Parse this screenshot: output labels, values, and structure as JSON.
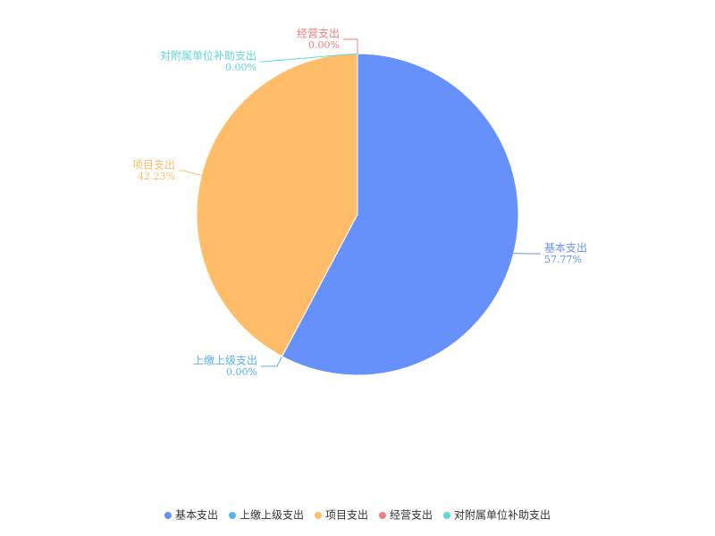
{
  "chart_data": {
    "type": "pie",
    "categories": [
      "基本支出",
      "上缴上级支出",
      "项目支出",
      "经营支出",
      "对附属单位补助支出"
    ],
    "values": [
      57.77,
      0,
      42.23,
      0,
      0
    ],
    "value_labels": [
      "57.77%",
      "0.00%",
      "42.23%",
      "0.00%",
      "0.00%"
    ],
    "colors": [
      "#6690fa",
      "#5ab1ef",
      "#ffbd6a",
      "#f08080",
      "#5fd8d8"
    ],
    "legend": "bottom"
  }
}
